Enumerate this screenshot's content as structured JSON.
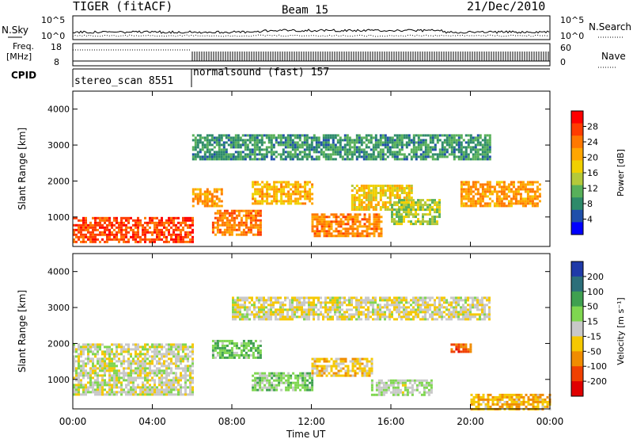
{
  "header": {
    "title": "TIGER (fitACF)",
    "beam": "Beam 15",
    "date": "21/Dec/2010"
  },
  "noise_panel": {
    "left_label": "N.Sky",
    "left_ticks": [
      "10^5",
      "10^0"
    ],
    "right_label": "N.Search",
    "right_ticks": [
      "10^5",
      "10^0"
    ]
  },
  "freq_panel": {
    "left_label_1": "Freq.",
    "left_label_2": "[MHz]",
    "left_ticks": [
      "18",
      "8"
    ],
    "right_label": "Nave",
    "right_ticks": [
      "60",
      "0"
    ]
  },
  "cpid_panel": {
    "label": "CPID",
    "segments": [
      {
        "text": "stereo_scan 8551",
        "start_hour": 0,
        "end_hour": 6
      },
      {
        "text": "normalsound (fast) 157",
        "start_hour": 6,
        "end_hour": 24
      }
    ]
  },
  "x_axis": {
    "title": "Time UT",
    "ticks": [
      "00:00",
      "04:00",
      "08:00",
      "12:00",
      "16:00",
      "20:00",
      "00:00"
    ]
  },
  "power_colorbar": {
    "title": "Power [dB]",
    "ticks": [
      "28",
      "24",
      "20",
      "16",
      "12",
      "8",
      "4"
    ],
    "colors": [
      "#ff0000",
      "#ff3c00",
      "#ff7800",
      "#ffa500",
      "#f0d000",
      "#b4c93a",
      "#58b05a",
      "#2d8a6a",
      "#1f4faa",
      "#0000ff"
    ]
  },
  "velocity_colorbar": {
    "title": "Velocity [m s⁻¹]",
    "ticks": [
      "200",
      "100",
      "50",
      "15",
      "-15",
      "-50",
      "-100",
      "-200"
    ],
    "colors": [
      "#1f3aa8",
      "#2c6f7a",
      "#3fa050",
      "#7fd650",
      "#c8c8c8",
      "#f5c800",
      "#f08c00",
      "#f04000",
      "#e00000"
    ]
  },
  "chart_data": [
    {
      "type": "heatmap",
      "title": "Power [dB]",
      "xlabel": "",
      "ylabel": "Slant Range [km]",
      "xlim": [
        0,
        24
      ],
      "ylim": [
        180,
        4500
      ],
      "yticks": [
        1000,
        2000,
        3000,
        4000
      ],
      "zlim": [
        0,
        32
      ],
      "regions": [
        {
          "x": [
            0,
            6
          ],
          "y": [
            300,
            1000
          ],
          "z": 27
        },
        {
          "x": [
            6,
            7.5
          ],
          "y": [
            1300,
            1800
          ],
          "z": 22
        },
        {
          "x": [
            7,
            9.5
          ],
          "y": [
            500,
            1200
          ],
          "z": 24
        },
        {
          "x": [
            9,
            12
          ],
          "y": [
            1400,
            2000
          ],
          "z": 20
        },
        {
          "x": [
            12,
            15.5
          ],
          "y": [
            500,
            1100
          ],
          "z": 23
        },
        {
          "x": [
            14,
            17
          ],
          "y": [
            1200,
            1900
          ],
          "z": 18
        },
        {
          "x": [
            16,
            18.5
          ],
          "y": [
            800,
            1500
          ],
          "z": 14
        },
        {
          "x": [
            19.5,
            23.5
          ],
          "y": [
            1300,
            2000
          ],
          "z": 22
        },
        {
          "x": [
            6,
            21
          ],
          "y": [
            2600,
            3300
          ],
          "z": 9
        }
      ]
    },
    {
      "type": "heatmap",
      "title": "Velocity [m s⁻¹]",
      "xlabel": "Time UT",
      "ylabel": "Slant Range [km]",
      "xlim": [
        0,
        24
      ],
      "ylim": [
        180,
        4500
      ],
      "yticks": [
        1000,
        2000,
        3000,
        4000
      ],
      "zlim": [
        -200,
        200
      ],
      "regions": [
        {
          "x": [
            0,
            6
          ],
          "y": [
            600,
            2000
          ],
          "z": 0
        },
        {
          "x": [
            7,
            9.5
          ],
          "y": [
            1600,
            2100
          ],
          "z": 60
        },
        {
          "x": [
            9,
            12
          ],
          "y": [
            700,
            1200
          ],
          "z": 45
        },
        {
          "x": [
            12,
            15
          ],
          "y": [
            1100,
            1600
          ],
          "z": -40
        },
        {
          "x": [
            15,
            18
          ],
          "y": [
            600,
            1000
          ],
          "z": 20
        },
        {
          "x": [
            19,
            20
          ],
          "y": [
            1800,
            2000
          ],
          "z": -120
        },
        {
          "x": [
            20,
            24
          ],
          "y": [
            180,
            600
          ],
          "z": -60
        },
        {
          "x": [
            8,
            21
          ],
          "y": [
            2700,
            3300
          ],
          "z": -10
        }
      ]
    }
  ]
}
